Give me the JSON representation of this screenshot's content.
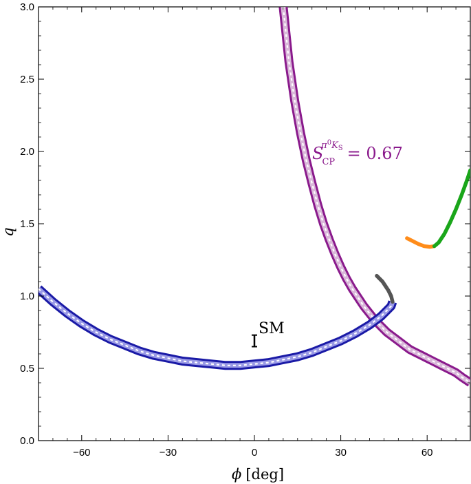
{
  "chart_data": {
    "type": "line",
    "xlabel": "ϕ",
    "xlabel_unit": "[deg]",
    "ylabel": "q",
    "xlim": [
      -75,
      75
    ],
    "ylim": [
      0,
      3.0
    ],
    "xticks": [
      -60,
      -30,
      0,
      30,
      60
    ],
    "xtick_labels": [
      "−60",
      "−30",
      "0",
      "30",
      "60"
    ],
    "yticks": [
      0.0,
      0.5,
      1.0,
      1.5,
      2.0,
      2.5,
      3.0
    ],
    "ytick_labels": [
      "0.0",
      "0.5",
      "1.0",
      "1.5",
      "2.0",
      "2.5",
      "3.0"
    ],
    "grid": false,
    "colors": {
      "purple_band": "#8a1a8c",
      "purple_fill": "#d9b8d9",
      "blue_band": "#1a1aa6",
      "gray_curve": "#555555",
      "green_curve": "#1aa61a",
      "orange_curve": "#ff8c1a",
      "sm_marker": "#000000"
    },
    "annotations": {
      "sm_label": "SM",
      "scp_symbol": "S",
      "scp_sub": "CP",
      "scp_sup_pi": "π",
      "scp_sup_zero": "0",
      "scp_sup_k": "K",
      "scp_sup_s": "S",
      "scp_equals": "= 0.67"
    },
    "sm_point": {
      "x": 0,
      "y": 0.69,
      "y_err_low": 0.65,
      "y_err_high": 0.73
    },
    "series": [
      {
        "style": "band",
        "color": "purple_band",
        "x": [
          10,
          12,
          14,
          16,
          18,
          20,
          22,
          24,
          26,
          28,
          30,
          32,
          34,
          36,
          38,
          40,
          42,
          44,
          46,
          48,
          50,
          52,
          54,
          56,
          58,
          60,
          62,
          64,
          66,
          68,
          70,
          72,
          75
        ],
        "y": [
          3.0,
          2.62,
          2.35,
          2.13,
          1.94,
          1.78,
          1.63,
          1.5,
          1.39,
          1.29,
          1.2,
          1.12,
          1.05,
          0.99,
          0.93,
          0.88,
          0.83,
          0.79,
          0.75,
          0.72,
          0.69,
          0.66,
          0.63,
          0.61,
          0.59,
          0.57,
          0.55,
          0.53,
          0.51,
          0.49,
          0.47,
          0.44,
          0.4
        ]
      },
      {
        "style": "band",
        "color": "blue_band",
        "x": [
          -75,
          -70,
          -65,
          -60,
          -55,
          -50,
          -45,
          -40,
          -35,
          -30,
          -25,
          -20,
          -15,
          -10,
          -5,
          0,
          5,
          10,
          15,
          20,
          25,
          30,
          35,
          40,
          44,
          46,
          47.5,
          48
        ],
        "y": [
          1.05,
          0.96,
          0.88,
          0.81,
          0.75,
          0.7,
          0.66,
          0.62,
          0.59,
          0.57,
          0.55,
          0.54,
          0.53,
          0.52,
          0.52,
          0.53,
          0.54,
          0.56,
          0.58,
          0.61,
          0.65,
          0.69,
          0.74,
          0.8,
          0.86,
          0.9,
          0.93,
          0.96
        ]
      },
      {
        "style": "line",
        "color": "gray_curve",
        "x": [
          48,
          47.5,
          46.5,
          45.5,
          44.5,
          43.5,
          42.5
        ],
        "y": [
          0.96,
          1.0,
          1.04,
          1.07,
          1.1,
          1.12,
          1.14
        ]
      },
      {
        "style": "line",
        "color": "orange_curve",
        "x": [
          53,
          55,
          57,
          59,
          61,
          62.5
        ],
        "y": [
          1.4,
          1.38,
          1.36,
          1.345,
          1.34,
          1.345
        ]
      },
      {
        "style": "line",
        "color": "green_curve",
        "x": [
          62.5,
          64,
          66,
          68,
          70,
          72,
          74,
          75
        ],
        "y": [
          1.345,
          1.37,
          1.43,
          1.51,
          1.6,
          1.7,
          1.81,
          1.87
        ]
      }
    ]
  }
}
